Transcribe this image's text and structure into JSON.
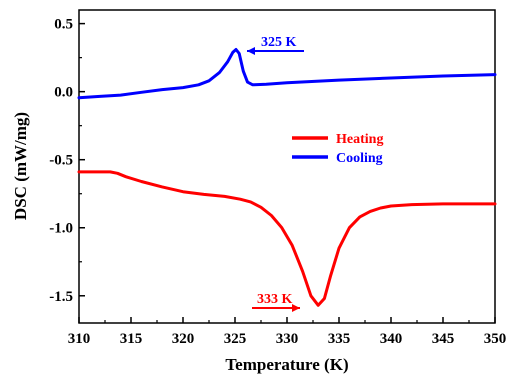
{
  "chart_data": {
    "type": "line",
    "title": "",
    "xlabel": "Temperature (K)",
    "ylabel": "DSC (mW/mg)",
    "xlim": [
      310,
      350
    ],
    "ylim": [
      -1.7,
      0.6
    ],
    "xticks": [
      310,
      315,
      320,
      325,
      330,
      335,
      340,
      345,
      350
    ],
    "yticks": [
      0.5,
      0.0,
      -0.5,
      -1.0,
      -1.5
    ],
    "ytick_labels": [
      "0.5",
      "0.0",
      "-0.5",
      "-1.0",
      "-1.5"
    ],
    "grid": false,
    "legend_position": "center-right",
    "series": [
      {
        "name": "Heating",
        "color": "#ff0000",
        "points": [
          [
            310.0,
            -0.59
          ],
          [
            311.5,
            -0.59
          ],
          [
            313.0,
            -0.59
          ],
          [
            313.7,
            -0.6
          ],
          [
            314.5,
            -0.625
          ],
          [
            316,
            -0.66
          ],
          [
            318,
            -0.7
          ],
          [
            320,
            -0.735
          ],
          [
            322,
            -0.755
          ],
          [
            324,
            -0.77
          ],
          [
            325.5,
            -0.79
          ],
          [
            326.5,
            -0.81
          ],
          [
            327.5,
            -0.85
          ],
          [
            328.5,
            -0.91
          ],
          [
            329.5,
            -1.0
          ],
          [
            330.5,
            -1.13
          ],
          [
            331.5,
            -1.32
          ],
          [
            332.3,
            -1.5
          ],
          [
            333.0,
            -1.57
          ],
          [
            333.6,
            -1.52
          ],
          [
            334.2,
            -1.35
          ],
          [
            335.0,
            -1.15
          ],
          [
            336.0,
            -1.0
          ],
          [
            337.0,
            -0.92
          ],
          [
            338.0,
            -0.88
          ],
          [
            339.0,
            -0.855
          ],
          [
            340.0,
            -0.84
          ],
          [
            342.0,
            -0.83
          ],
          [
            345.0,
            -0.825
          ],
          [
            348.0,
            -0.825
          ],
          [
            350.0,
            -0.825
          ]
        ]
      },
      {
        "name": "Cooling",
        "color": "#0000ff",
        "points": [
          [
            310.0,
            -0.045
          ],
          [
            312.0,
            -0.035
          ],
          [
            314.0,
            -0.025
          ],
          [
            316.0,
            -0.005
          ],
          [
            318.0,
            0.015
          ],
          [
            320.0,
            0.03
          ],
          [
            321.5,
            0.05
          ],
          [
            322.5,
            0.08
          ],
          [
            323.5,
            0.14
          ],
          [
            324.3,
            0.22
          ],
          [
            324.8,
            0.29
          ],
          [
            325.1,
            0.31
          ],
          [
            325.4,
            0.28
          ],
          [
            325.8,
            0.15
          ],
          [
            326.2,
            0.07
          ],
          [
            326.7,
            0.05
          ],
          [
            328.0,
            0.055
          ],
          [
            330.0,
            0.065
          ],
          [
            335.0,
            0.085
          ],
          [
            340.0,
            0.1
          ],
          [
            345.0,
            0.115
          ],
          [
            350.0,
            0.125
          ]
        ]
      }
    ],
    "annotations": [
      {
        "text": "325 K",
        "color": "#0000ff",
        "arrow": "left",
        "x": 326.6,
        "y": 0.36
      },
      {
        "text": "333 K",
        "color": "#ff0000",
        "arrow": "right",
        "x": 327.8,
        "y": -1.5
      }
    ]
  }
}
